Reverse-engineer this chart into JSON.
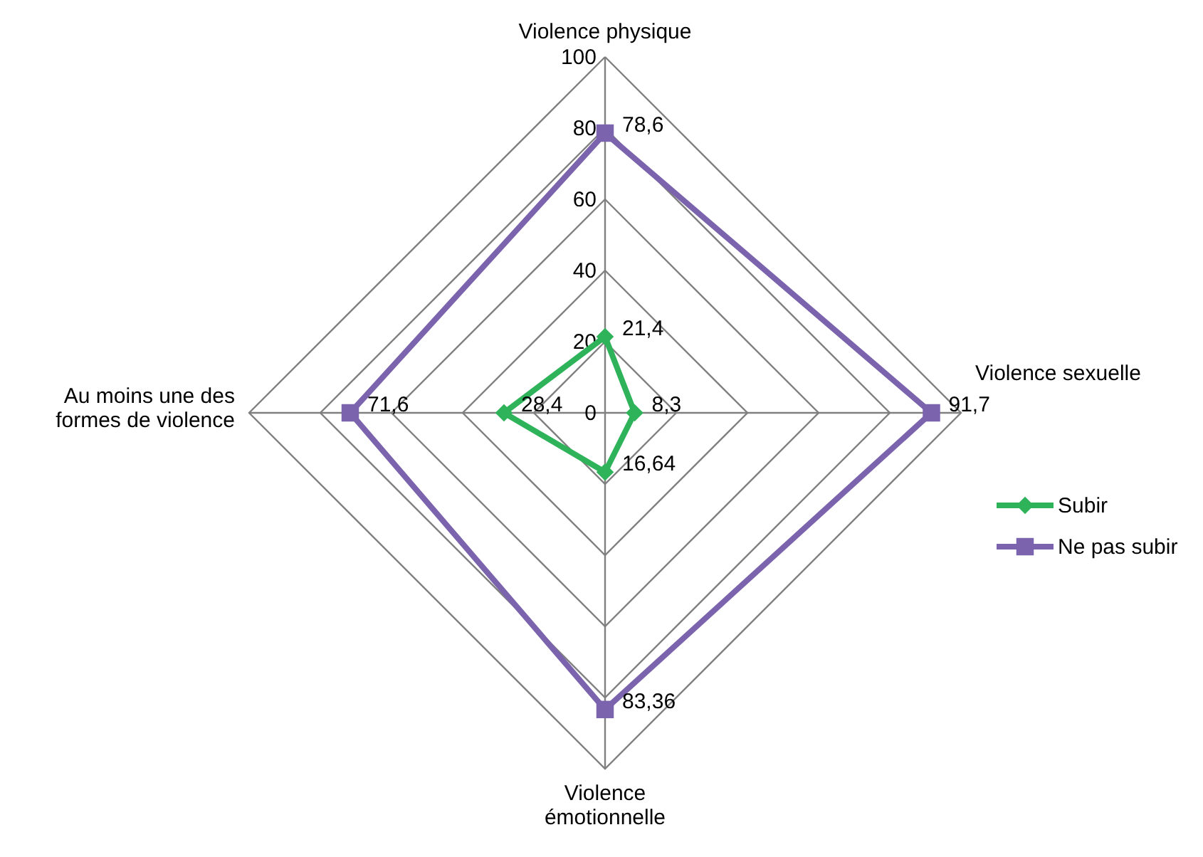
{
  "chart_data": {
    "type": "radar",
    "categories": [
      "Violence physique",
      "Violence sexuelle",
      "Violence\némotionnelle",
      "Au moins une des\nformes de violence"
    ],
    "series": [
      {
        "name": "Subir",
        "color": "#2eb35a",
        "marker": "diamond",
        "values": [
          21.4,
          8.3,
          16.64,
          28.4
        ],
        "value_labels": [
          "21,4",
          "8,3",
          "16,64",
          "28,4"
        ]
      },
      {
        "name": "Ne pas subir",
        "color": "#7b64ad",
        "marker": "square",
        "values": [
          78.6,
          91.7,
          83.36,
          71.6
        ],
        "value_labels": [
          "78,6",
          "91,7",
          "83,36",
          "71,6"
        ]
      }
    ],
    "ylim": [
      0,
      100
    ],
    "yticks": [
      0,
      20,
      40,
      60,
      80,
      100
    ],
    "grid": true,
    "legend": "right"
  }
}
